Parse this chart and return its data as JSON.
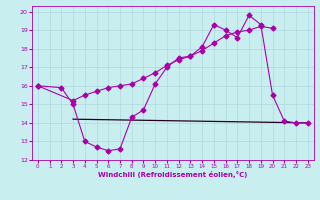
{
  "xlabel": "Windchill (Refroidissement éolien,°C)",
  "bg_color": "#c8eef0",
  "grid_color": "#b0d8dc",
  "line_color": "#aa00aa",
  "line_color_dark": "#220022",
  "xlim": [
    -0.5,
    23.5
  ],
  "ylim": [
    12,
    20.3
  ],
  "xticks": [
    0,
    1,
    2,
    3,
    4,
    5,
    6,
    7,
    8,
    9,
    10,
    11,
    12,
    13,
    14,
    15,
    16,
    17,
    18,
    19,
    20,
    21,
    22,
    23
  ],
  "yticks": [
    12,
    13,
    14,
    15,
    16,
    17,
    18,
    19,
    20
  ],
  "series1_x": [
    0,
    2,
    3,
    4,
    5,
    6,
    7,
    8,
    9,
    10,
    11,
    12,
    13,
    14,
    15,
    16,
    17,
    18,
    19,
    20,
    21,
    22,
    23
  ],
  "series1_y": [
    16.0,
    15.9,
    15.0,
    13.0,
    12.7,
    12.5,
    12.6,
    14.3,
    14.7,
    16.1,
    17.0,
    17.5,
    17.6,
    18.1,
    19.3,
    19.0,
    18.6,
    19.8,
    19.3,
    15.5,
    14.1,
    14.0,
    14.0
  ],
  "series2_x": [
    0,
    3,
    4,
    5,
    6,
    7,
    8,
    9,
    10,
    11,
    12,
    13,
    14,
    15,
    16,
    17,
    18,
    19,
    20
  ],
  "series2_y": [
    16.0,
    15.2,
    15.5,
    15.7,
    15.9,
    16.0,
    16.1,
    16.4,
    16.7,
    17.1,
    17.4,
    17.6,
    17.9,
    18.3,
    18.7,
    18.9,
    19.0,
    19.2,
    19.1
  ],
  "series3_x": [
    3,
    23
  ],
  "series3_y": [
    14.2,
    14.0
  ],
  "markersize": 2.5,
  "linewidth": 0.8
}
